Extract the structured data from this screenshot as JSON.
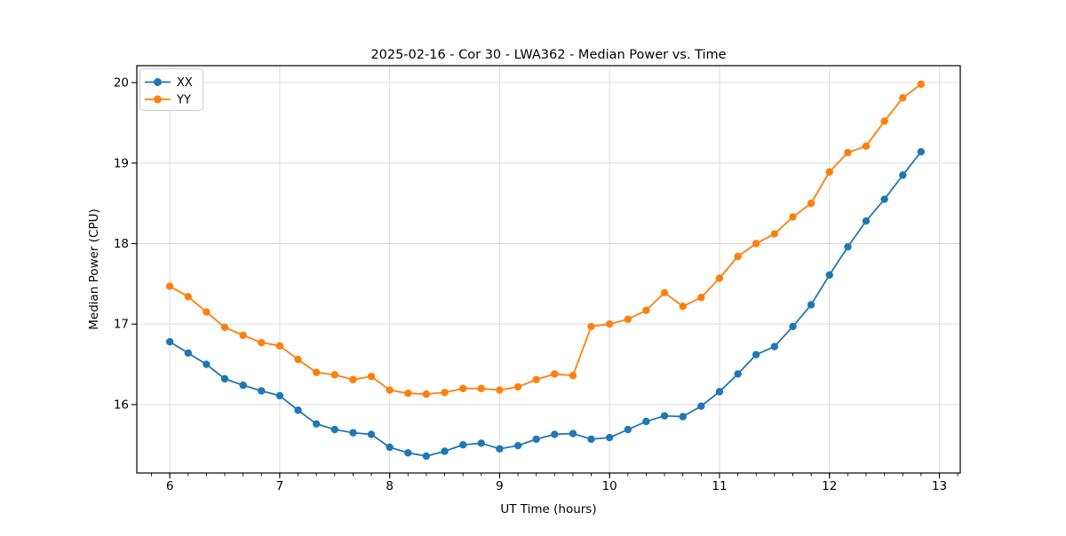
{
  "figure": {
    "background": "#ffffff"
  },
  "chart_data": {
    "type": "line",
    "title": "2025-02-16 - Cor 30 - LWA362 - Median Power vs. Time",
    "xlabel": "UT Time (hours)",
    "ylabel": "Median Power (CPU)",
    "xlim": [
      5.7,
      13.19
    ],
    "ylim": [
      15.15,
      20.21
    ],
    "x_major_ticks": [
      6,
      7,
      8,
      9,
      10,
      11,
      12,
      13
    ],
    "y_major_ticks": [
      16,
      17,
      18,
      19,
      20
    ],
    "x_minor_tick_step": 0.166667,
    "grid": "major-both",
    "legend_position": "upper-left",
    "x": [
      6.0,
      6.167,
      6.333,
      6.5,
      6.667,
      6.833,
      7.0,
      7.167,
      7.333,
      7.5,
      7.667,
      7.833,
      8.0,
      8.167,
      8.333,
      8.5,
      8.667,
      8.833,
      9.0,
      9.167,
      9.333,
      9.5,
      9.667,
      9.833,
      10.0,
      10.167,
      10.333,
      10.5,
      10.667,
      10.833,
      11.0,
      11.167,
      11.333,
      11.5,
      11.667,
      11.833,
      12.0,
      12.167,
      12.333,
      12.5,
      12.667,
      12.833
    ],
    "series": [
      {
        "name": "XX",
        "color": "#1f77b4",
        "values": [
          16.78,
          16.64,
          16.5,
          16.32,
          16.24,
          16.17,
          16.11,
          15.93,
          15.76,
          15.69,
          15.65,
          15.63,
          15.47,
          15.4,
          15.36,
          15.42,
          15.5,
          15.52,
          15.45,
          15.49,
          15.57,
          15.63,
          15.64,
          15.57,
          15.59,
          15.69,
          15.79,
          15.86,
          15.85,
          15.98,
          16.16,
          16.38,
          16.62,
          16.72,
          16.97,
          17.24,
          17.61,
          17.96,
          18.28,
          18.55,
          18.85,
          19.14
        ]
      },
      {
        "name": "YY",
        "color": "#ff7f0e",
        "values": [
          17.47,
          17.34,
          17.15,
          16.96,
          16.86,
          16.77,
          16.73,
          16.56,
          16.4,
          16.37,
          16.31,
          16.35,
          16.18,
          16.14,
          16.13,
          16.15,
          16.2,
          16.2,
          16.18,
          16.22,
          16.31,
          16.38,
          16.36,
          16.97,
          17.0,
          17.06,
          17.17,
          17.39,
          17.22,
          17.33,
          17.57,
          17.84,
          18.0,
          18.12,
          18.33,
          18.5,
          18.89,
          19.13,
          19.21,
          19.52,
          19.81,
          19.98
        ]
      }
    ]
  },
  "style": {
    "grid_color": "#dcdcdc",
    "spine_color": "#000000",
    "legend_border_color": "#cccccc",
    "legend_background": "#ffffff",
    "text_color": "#000000"
  }
}
